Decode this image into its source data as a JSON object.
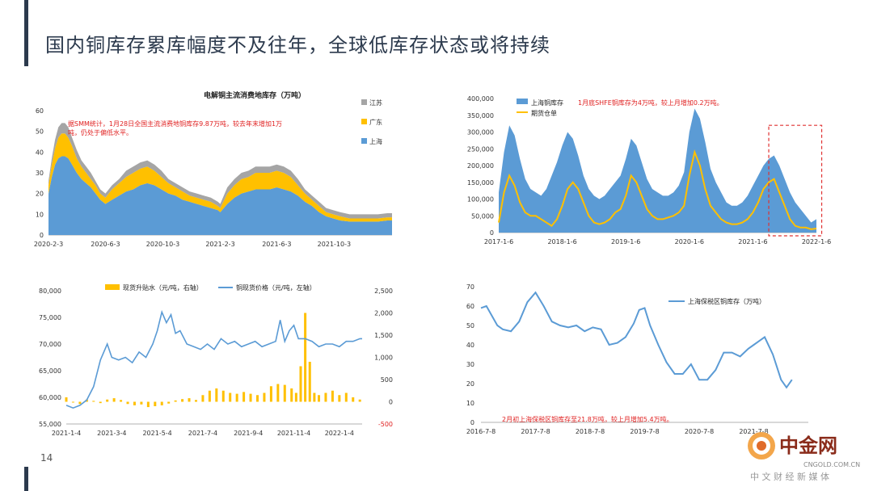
{
  "page": {
    "title": "国内铜库存累库幅度不及往年，全球低库存状态或将持续",
    "page_number": "14"
  },
  "watermark": {
    "brand": "中金网",
    "url": "CNGOLD.COM.CN",
    "slogan": "中 文 财 经 新 媒 体"
  },
  "chart_data": [
    {
      "id": "c1",
      "type": "area",
      "stacked": true,
      "title": "电解铜主流消费地库存（万吨）",
      "annotation": "据SMM统计，1月28日全国主流消费地铜库存9.87万吨，较去年末增加1万吨，仍处于偏低水平。",
      "ylim": [
        0,
        60
      ],
      "yticks": [
        0,
        10,
        20,
        30,
        40,
        50,
        60
      ],
      "xlim": [
        0,
        730
      ],
      "xticks": [
        {
          "v": 0,
          "label": "2020-2-3"
        },
        {
          "v": 121,
          "label": "2020-6-3"
        },
        {
          "v": 243,
          "label": "2020-10-3"
        },
        {
          "v": 365,
          "label": "2021-2-3"
        },
        {
          "v": 485,
          "label": "2021-6-3"
        },
        {
          "v": 607,
          "label": "2021-10-3"
        }
      ],
      "legend": [
        "江苏",
        "广东",
        "上海"
      ],
      "colors": {
        "上海": "#5b9bd5",
        "广东": "#ffc000",
        "江苏": "#a5a5a5"
      },
      "x": [
        0,
        7,
        14,
        21,
        28,
        35,
        42,
        50,
        60,
        70,
        80,
        90,
        100,
        110,
        121,
        135,
        150,
        165,
        180,
        195,
        210,
        225,
        240,
        255,
        270,
        285,
        300,
        315,
        330,
        345,
        360,
        365,
        380,
        395,
        410,
        425,
        440,
        455,
        470,
        485,
        500,
        515,
        530,
        545,
        560,
        575,
        590,
        605,
        620,
        640,
        660,
        680,
        700,
        720,
        730
      ],
      "series": [
        {
          "name": "上海",
          "values": [
            20,
            28,
            34,
            37,
            38,
            38,
            37,
            34,
            30,
            27,
            25,
            23,
            20,
            17,
            15,
            17,
            19,
            21,
            22,
            24,
            25,
            24,
            22,
            20,
            19,
            17,
            16,
            15,
            14,
            13,
            12,
            11,
            15,
            18,
            20,
            21,
            22,
            22,
            22,
            23,
            22,
            21,
            19,
            16,
            14,
            11,
            9,
            8,
            7,
            6.5,
            6.5,
            6.5,
            6.5,
            7,
            7
          ]
        },
        {
          "name": "广东",
          "values": [
            4,
            6,
            8,
            10,
            11,
            11,
            10,
            9,
            7,
            6,
            5,
            4,
            4,
            3,
            3,
            5,
            6,
            7,
            8,
            8,
            8,
            7,
            6,
            5,
            4,
            4,
            3,
            3,
            3,
            3,
            2,
            2,
            5,
            6,
            7,
            7,
            8,
            8,
            8,
            8,
            8,
            7,
            5,
            4,
            3,
            3,
            2,
            2,
            2,
            1.5,
            1.5,
            1.5,
            1.5,
            1.5,
            1.5
          ]
        },
        {
          "name": "江苏",
          "values": [
            2,
            3,
            4,
            5,
            5,
            5,
            5,
            4,
            4,
            3,
            3,
            3,
            2,
            2,
            2,
            2,
            2,
            3,
            3,
            3,
            3,
            3,
            3,
            2,
            2,
            2,
            2,
            2,
            2,
            2,
            2,
            2,
            3,
            3,
            3,
            3,
            3,
            3,
            3,
            3,
            3,
            3,
            3,
            2,
            2,
            2,
            2,
            2,
            2,
            2,
            2,
            2,
            2,
            2,
            2
          ]
        }
      ]
    },
    {
      "id": "c2",
      "type": "area",
      "title": "",
      "annotation": "1月底SHFE铜库存为4万吨，较上月增加0.2万吨。",
      "ylim": [
        0,
        400000
      ],
      "yticks": [
        0,
        50000,
        100000,
        150000,
        200000,
        250000,
        300000,
        350000,
        400000
      ],
      "ytick_labels": [
        "0",
        "50,000",
        "100,000",
        "150,000",
        "200,000",
        "250,000",
        "300,000",
        "350,000",
        "400,000"
      ],
      "xlim": [
        0,
        60
      ],
      "xticks": [
        {
          "v": 0,
          "label": "2017-1-6"
        },
        {
          "v": 12,
          "label": "2018-1-6"
        },
        {
          "v": 24,
          "label": "2019-1-6"
        },
        {
          "v": 36,
          "label": "2020-1-6"
        },
        {
          "v": 48,
          "label": "2021-1-6"
        },
        {
          "v": 60,
          "label": "2022-1-6"
        }
      ],
      "legend": [
        "上海铜库存",
        "期货仓单"
      ],
      "colors": {
        "上海铜库存": "#5b9bd5",
        "期货仓单": "#ffc000",
        "highlight": "#e03030"
      },
      "highlight_x_range": [
        51,
        61
      ],
      "x": [
        0,
        1,
        2,
        3,
        4,
        5,
        6,
        7,
        8,
        9,
        10,
        11,
        12,
        13,
        14,
        15,
        16,
        17,
        18,
        19,
        20,
        21,
        22,
        23,
        24,
        25,
        26,
        27,
        28,
        29,
        30,
        31,
        32,
        33,
        34,
        35,
        36,
        37,
        38,
        39,
        40,
        41,
        42,
        43,
        44,
        45,
        46,
        47,
        48,
        49,
        50,
        51,
        52,
        53,
        54,
        55,
        56,
        57,
        58,
        59,
        60
      ],
      "series": [
        {
          "name": "上海铜库存",
          "values": [
            120000,
            240000,
            320000,
            290000,
            220000,
            160000,
            130000,
            120000,
            110000,
            130000,
            170000,
            210000,
            260000,
            300000,
            280000,
            230000,
            170000,
            130000,
            110000,
            100000,
            110000,
            130000,
            150000,
            170000,
            220000,
            280000,
            260000,
            210000,
            160000,
            130000,
            120000,
            110000,
            110000,
            120000,
            140000,
            180000,
            300000,
            370000,
            340000,
            270000,
            190000,
            150000,
            120000,
            90000,
            80000,
            80000,
            90000,
            110000,
            140000,
            170000,
            200000,
            220000,
            230000,
            200000,
            160000,
            120000,
            90000,
            70000,
            50000,
            30000,
            40000
          ]
        },
        {
          "name": "期货仓单",
          "values": [
            30000,
            120000,
            170000,
            140000,
            90000,
            60000,
            50000,
            50000,
            40000,
            30000,
            20000,
            40000,
            80000,
            130000,
            150000,
            130000,
            90000,
            50000,
            30000,
            25000,
            30000,
            40000,
            60000,
            70000,
            110000,
            170000,
            150000,
            110000,
            70000,
            50000,
            40000,
            40000,
            45000,
            50000,
            60000,
            80000,
            170000,
            240000,
            200000,
            130000,
            80000,
            60000,
            40000,
            30000,
            25000,
            25000,
            30000,
            40000,
            60000,
            90000,
            130000,
            150000,
            160000,
            120000,
            80000,
            40000,
            20000,
            15000,
            15000,
            10000,
            12000
          ]
        }
      ]
    },
    {
      "id": "c3",
      "type": "line",
      "title": "",
      "ylim": [
        55000,
        80000
      ],
      "yticks": [
        55000,
        60000,
        65000,
        70000,
        75000,
        80000
      ],
      "ytick_labels": [
        "55,000",
        "60,000",
        "65,000",
        "70,000",
        "75,000",
        "80,000"
      ],
      "y2lim": [
        -500,
        2500
      ],
      "y2ticks": [
        -500,
        0,
        500,
        1000,
        1500,
        2000,
        2500
      ],
      "y2tick_labels": [
        "-500",
        "0",
        "500",
        "1,000",
        "1,500",
        "2,000",
        "2,500"
      ],
      "xlim": [
        0,
        13
      ],
      "xticks": [
        {
          "v": 0,
          "label": "2021-1-4"
        },
        {
          "v": 2,
          "label": "2021-3-4"
        },
        {
          "v": 4,
          "label": "2021-5-4"
        },
        {
          "v": 6,
          "label": "2021-7-4"
        },
        {
          "v": 8,
          "label": "2021-9-4"
        },
        {
          "v": 10,
          "label": "2021-11-4"
        },
        {
          "v": 12,
          "label": "2022-1-4"
        }
      ],
      "legend": [
        "现货升贴水（元/吨，右轴）",
        "铜现货价格（元/吨，左轴）"
      ],
      "colors": {
        "现货升贴水（元/吨，右轴）": "#ffc000",
        "铜现货价格（元/吨，左轴）": "#5b9bd5"
      },
      "price": {
        "name": "铜现货价格（元/吨，左轴）",
        "x": [
          0,
          0.3,
          0.6,
          0.9,
          1.2,
          1.5,
          1.8,
          2.0,
          2.3,
          2.6,
          2.9,
          3.2,
          3.5,
          3.8,
          4.0,
          4.2,
          4.4,
          4.6,
          4.8,
          5.0,
          5.3,
          5.6,
          5.9,
          6.2,
          6.5,
          6.8,
          7.1,
          7.4,
          7.7,
          8.0,
          8.3,
          8.6,
          8.9,
          9.2,
          9.4,
          9.6,
          9.8,
          10.0,
          10.2,
          10.5,
          10.8,
          11.1,
          11.4,
          11.7,
          12.0,
          12.3,
          12.6,
          12.9,
          13.0
        ],
        "values": [
          58500,
          58000,
          58500,
          59500,
          62000,
          67000,
          70000,
          67500,
          67000,
          67500,
          66500,
          68500,
          67500,
          70000,
          72500,
          76000,
          74000,
          75500,
          72000,
          72500,
          70000,
          69500,
          69000,
          70000,
          69000,
          71000,
          70000,
          70500,
          69500,
          70000,
          70500,
          69500,
          70000,
          70500,
          74500,
          70500,
          72500,
          73500,
          71000,
          71000,
          70500,
          69500,
          70000,
          70000,
          69500,
          70500,
          70500,
          71000,
          71000
        ]
      },
      "basis": {
        "name": "现货升贴水（元/吨，右轴）",
        "x": [
          0,
          0.3,
          0.6,
          0.9,
          1.2,
          1.5,
          1.8,
          2.1,
          2.4,
          2.7,
          3.0,
          3.3,
          3.6,
          3.9,
          4.2,
          4.5,
          4.8,
          5.1,
          5.4,
          5.7,
          6.0,
          6.3,
          6.6,
          6.9,
          7.2,
          7.5,
          7.8,
          8.1,
          8.4,
          8.7,
          9.0,
          9.3,
          9.6,
          9.9,
          10.1,
          10.3,
          10.5,
          10.7,
          10.9,
          11.1,
          11.4,
          11.7,
          12.0,
          12.3,
          12.6,
          12.9
        ],
        "values": [
          100,
          0,
          -50,
          50,
          20,
          -30,
          50,
          80,
          40,
          -50,
          -80,
          -60,
          -120,
          -100,
          -80,
          -40,
          30,
          60,
          80,
          40,
          150,
          250,
          300,
          250,
          200,
          180,
          220,
          180,
          150,
          200,
          350,
          400,
          380,
          300,
          200,
          800,
          2000,
          900,
          200,
          150,
          200,
          250,
          150,
          200,
          100,
          50
        ]
      }
    },
    {
      "id": "c4",
      "type": "line",
      "title": "",
      "annotation": "2月初上海保税区铜库存至21.8万吨，较上月增加5.4万吨。",
      "ylim": [
        0,
        70
      ],
      "yticks": [
        0,
        10,
        20,
        30,
        40,
        50,
        60,
        70
      ],
      "xlim": [
        0,
        6
      ],
      "xticks": [
        {
          "v": 0,
          "label": "2016-7-8"
        },
        {
          "v": 1,
          "label": "2017-7-8"
        },
        {
          "v": 2,
          "label": "2018-7-8"
        },
        {
          "v": 3,
          "label": "2019-7-8"
        },
        {
          "v": 4,
          "label": "2020-7-8"
        },
        {
          "v": 5,
          "label": "2021-7-8"
        }
      ],
      "legend": [
        "上海保税区铜库存（万吨）"
      ],
      "colors": {
        "上海保税区铜库存（万吨）": "#5b9bd5"
      },
      "x": [
        0,
        0.1,
        0.2,
        0.3,
        0.4,
        0.55,
        0.7,
        0.85,
        1.0,
        1.15,
        1.3,
        1.45,
        1.6,
        1.75,
        1.9,
        2.05,
        2.2,
        2.35,
        2.5,
        2.65,
        2.8,
        2.9,
        3.0,
        3.1,
        3.25,
        3.4,
        3.55,
        3.7,
        3.85,
        4.0,
        4.15,
        4.3,
        4.45,
        4.6,
        4.75,
        4.9,
        5.0,
        5.1,
        5.2,
        5.35,
        5.5,
        5.6,
        5.7
      ],
      "series": [
        {
          "name": "上海保税区铜库存（万吨）",
          "values": [
            59,
            60,
            55,
            50,
            48,
            47,
            52,
            62,
            67,
            60,
            52,
            50,
            49,
            50,
            47,
            49,
            48,
            40,
            41,
            44,
            51,
            58,
            59,
            50,
            40,
            31,
            25,
            25,
            30,
            22,
            22,
            27,
            36,
            36,
            34,
            38,
            40,
            42,
            44,
            35,
            22,
            18,
            22
          ]
        }
      ]
    }
  ]
}
